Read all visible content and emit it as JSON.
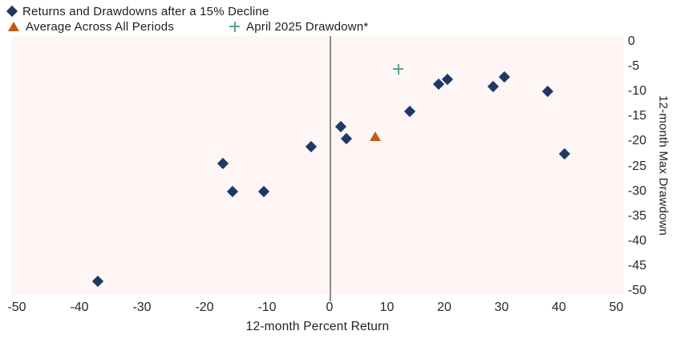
{
  "legend": {
    "items": [
      {
        "label": "Returns and Drawdowns after a 15% Decline",
        "marker": "diamond-icon"
      },
      {
        "label": "Average Across All Periods",
        "marker": "triangle-icon"
      },
      {
        "label": "April 2025 Drawdown*",
        "marker": "plus-icon"
      }
    ]
  },
  "axes": {
    "x_title": "12-month Percent Return",
    "y_title": "12-month Max Drawdown",
    "x_ticks": [
      -50,
      -40,
      -30,
      -20,
      -10,
      0,
      10,
      20,
      30,
      40,
      50
    ],
    "y_ticks": [
      0,
      -5,
      -10,
      -15,
      -20,
      -25,
      -30,
      -35,
      -40,
      -45,
      -50
    ]
  },
  "colors": {
    "navy": "#1f3864",
    "orange": "#c25c11",
    "teal": "#57a295",
    "plot_background": "#fdf6f4",
    "zero_line": "#8a8a8a",
    "text": "#231f20"
  },
  "chart_data": {
    "type": "scatter",
    "title": "",
    "xlabel": "12-month Percent Return",
    "ylabel": "12-month Max Drawdown",
    "xlim": [
      -50,
      50
    ],
    "ylim": [
      -50,
      0
    ],
    "grid": false,
    "legend_position": "top-left",
    "series": [
      {
        "name": "Returns and Drawdowns after a 15% Decline",
        "marker": "diamond",
        "color": "#1f3864",
        "points": [
          [
            -37,
            -48
          ],
          [
            -17,
            -24.5
          ],
          [
            -15.5,
            -30
          ],
          [
            -10.5,
            -30
          ],
          [
            -3,
            -21
          ],
          [
            2,
            -17
          ],
          [
            3,
            -19.5
          ],
          [
            14,
            -14
          ],
          [
            19,
            -8.5
          ],
          [
            20.5,
            -7.5
          ],
          [
            28.5,
            -9
          ],
          [
            30.5,
            -7
          ],
          [
            38,
            -10
          ],
          [
            41,
            -22.5
          ]
        ]
      },
      {
        "name": "Average Across All Periods",
        "marker": "triangle",
        "color": "#c25c11",
        "points": [
          [
            8,
            -19
          ]
        ]
      },
      {
        "name": "April 2025 Drawdown*",
        "marker": "plus",
        "color": "#57a295",
        "points": [
          [
            12,
            -5.5
          ]
        ]
      }
    ]
  }
}
